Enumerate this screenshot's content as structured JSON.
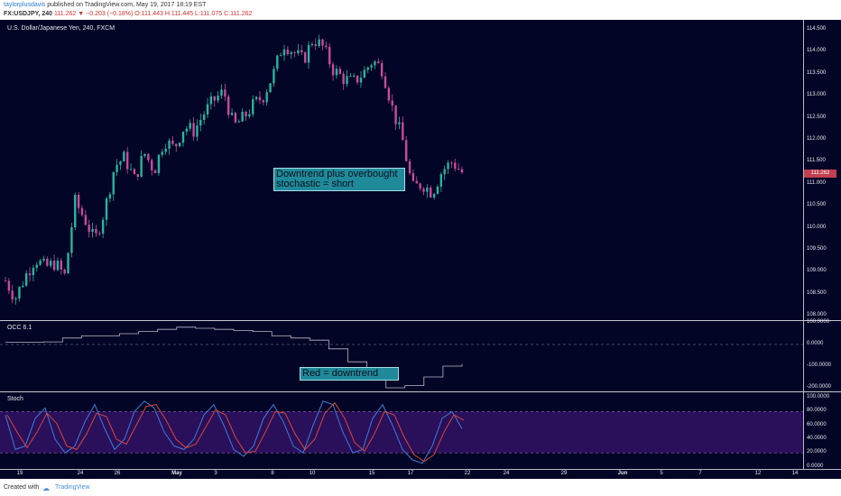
{
  "header": {
    "author": "taylorplusdavis",
    "published": " published on TradingView.com, May 19, 2017 18:19 EST",
    "symbol": "FX:USDJPY, 240",
    "last": "111.262",
    "change": "▼ −0.203 (−0.18%)",
    "ohlc": "O:111.443 H:111.445 L:111.075 C:111.262"
  },
  "main_pane": {
    "label": "U.S. Dollar/Japanese Yen, 240, FXCM",
    "price_ticks": [
      "114.500",
      "114.000",
      "113.500",
      "113.000",
      "112.500",
      "112.000",
      "111.500",
      "111.000",
      "110.500",
      "110.000",
      "109.500",
      "109.000",
      "108.500",
      "108.000"
    ],
    "last_price": "111.262",
    "note": "Downtrend plus overbought stochastic = short"
  },
  "occ_pane": {
    "label": "OCC 6.1",
    "ticks": [
      "100.0000",
      "0.0000",
      "-100.0000",
      "-200.0000"
    ],
    "note": "Red = downtrend"
  },
  "stoch_pane": {
    "label": "Stoch",
    "ticks": [
      "100.0000",
      "80.0000",
      "60.0000",
      "40.0000",
      "20.0000",
      "0.0000"
    ]
  },
  "x_ticks": [
    {
      "label": "19",
      "bold": false
    },
    {
      "label": "24",
      "bold": false
    },
    {
      "label": "26",
      "bold": false
    },
    {
      "label": "May",
      "bold": true
    },
    {
      "label": "3",
      "bold": false
    },
    {
      "label": "8",
      "bold": false
    },
    {
      "label": "10",
      "bold": false
    },
    {
      "label": "15",
      "bold": false
    },
    {
      "label": "17",
      "bold": false
    },
    {
      "label": "22",
      "bold": false
    },
    {
      "label": "24",
      "bold": false
    },
    {
      "label": "29",
      "bold": false
    },
    {
      "label": "Jun",
      "bold": true
    },
    {
      "label": "5",
      "bold": false
    },
    {
      "label": "7",
      "bold": false
    },
    {
      "label": "12",
      "bold": false
    },
    {
      "label": "14",
      "bold": false
    }
  ],
  "footer": {
    "created": "Created with",
    "brand": "TradingView"
  },
  "colors": {
    "bg": "#020525",
    "up": "#2ab3a0",
    "down": "#c94b9a",
    "stoch_k": "#3d7dd8",
    "stoch_d": "#d8463a",
    "stoch_band": "#2a0f5a",
    "occ_line": "#b8b8c8"
  },
  "chart_data": {
    "type": "candlestick",
    "y_range": [
      108.0,
      114.7
    ],
    "close_path": [
      108.8,
      108.4,
      108.9,
      109.3,
      109.1,
      109.2,
      108.9,
      110.6,
      110.2,
      109.7,
      110.4,
      111.4,
      111.6,
      111.1,
      111.7,
      111.3,
      112.0,
      111.8,
      112.3,
      112.2,
      112.6,
      112.9,
      113.1,
      112.3,
      112.5,
      112.8,
      113.0,
      113.5,
      114.2,
      114.0,
      113.8,
      114.3,
      114.1,
      113.6,
      113.4,
      113.3,
      113.5,
      113.8,
      113.6,
      112.7,
      112.0,
      110.9,
      111.0,
      110.8,
      111.3,
      111.5,
      111.26
    ],
    "stoch_k": [
      75,
      25,
      30,
      70,
      85,
      40,
      20,
      30,
      65,
      90,
      55,
      25,
      40,
      80,
      95,
      85,
      50,
      30,
      25,
      40,
      75,
      90,
      60,
      25,
      15,
      30,
      70,
      90,
      65,
      30,
      20,
      60,
      95,
      90,
      50,
      20,
      25,
      70,
      90,
      60,
      25,
      10,
      5,
      30,
      70,
      80,
      55
    ],
    "occ": [
      10,
      10,
      12,
      30,
      40,
      40,
      50,
      60,
      70,
      80,
      75,
      70,
      65,
      60,
      40,
      30,
      20,
      -20,
      -80,
      -140,
      -200,
      -190,
      -150,
      -100,
      -90
    ]
  }
}
